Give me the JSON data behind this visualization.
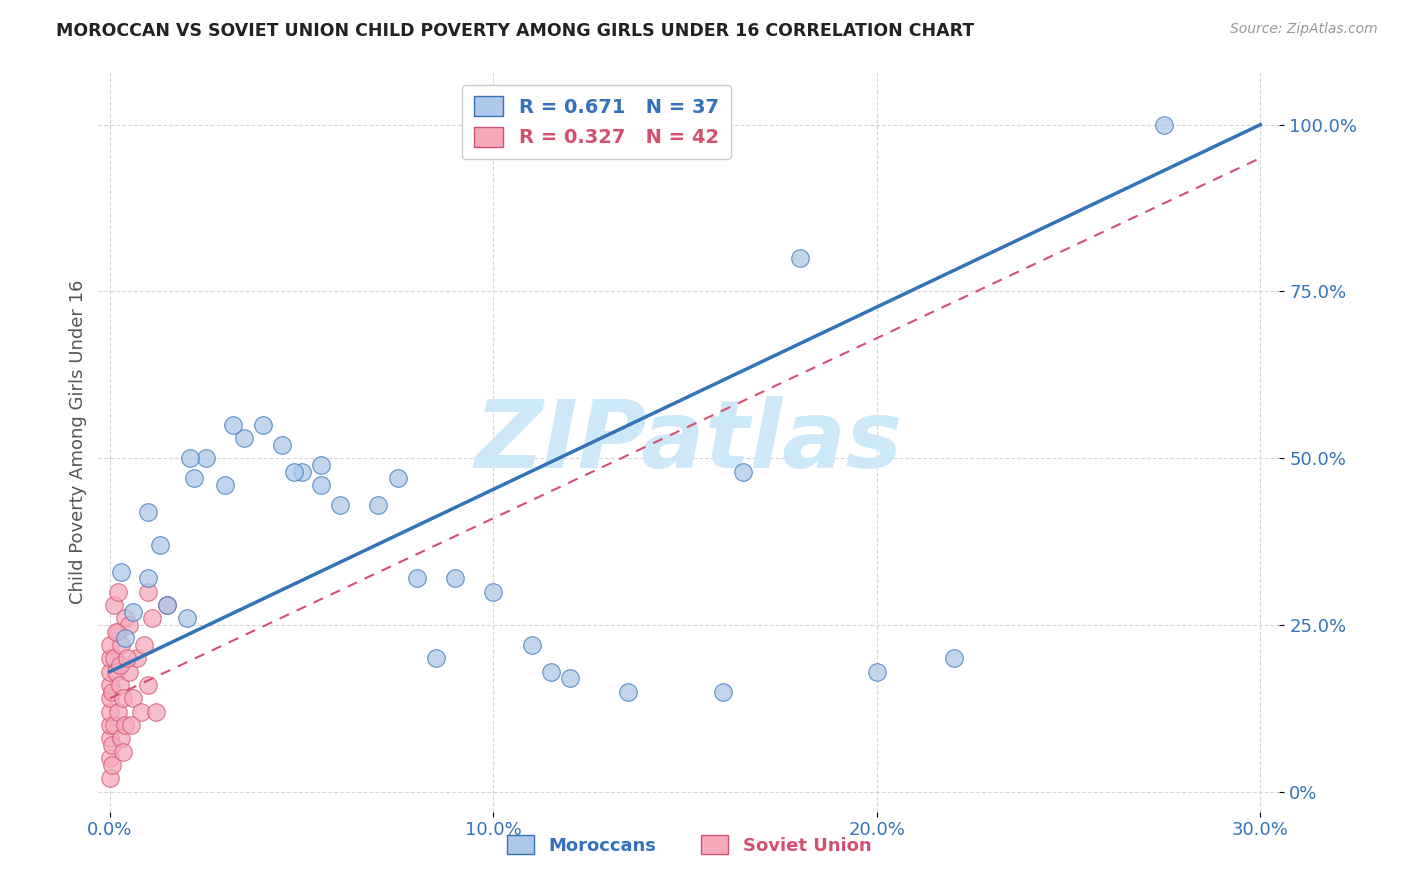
{
  "title": "MOROCCAN VS SOVIET UNION CHILD POVERTY AMONG GIRLS UNDER 16 CORRELATION CHART",
  "source_text": "Source: ZipAtlas.com",
  "ylabel": "Child Poverty Among Girls Under 16",
  "xlabel_ticks": [
    "0.0%",
    "10.0%",
    "20.0%",
    "30.0%"
  ],
  "xlabel_tick_vals": [
    0.0,
    10.0,
    20.0,
    30.0
  ],
  "ylabel_ticks": [
    "100.0%",
    "75.0%",
    "50.0%",
    "25.0%",
    "0%"
  ],
  "ylabel_tick_vals": [
    100.0,
    75.0,
    50.0,
    25.0,
    0.0
  ],
  "xlim": [
    -0.3,
    30.5
  ],
  "ylim": [
    -3.0,
    108.0
  ],
  "moroccan_R": 0.671,
  "moroccan_N": 37,
  "soviet_R": 0.327,
  "soviet_N": 42,
  "moroccan_color": "#adc8e8",
  "moroccan_line_color": "#3473ba",
  "soviet_color": "#f5aabc",
  "soviet_line_color": "#d45070",
  "watermark_text": "ZIPatlas",
  "watermark_color": "#cde8f8",
  "background_color": "#ffffff",
  "moroccan_line_x0": 0.0,
  "moroccan_line_y0": 18.0,
  "moroccan_line_x1": 30.0,
  "moroccan_line_y1": 100.0,
  "soviet_line_x0": 0.0,
  "soviet_line_y0": 14.0,
  "soviet_line_x1": 30.0,
  "soviet_line_y1": 95.0,
  "moroccan_x": [
    0.4,
    0.6,
    1.0,
    1.3,
    1.5,
    2.0,
    2.2,
    2.5,
    3.0,
    3.5,
    4.0,
    4.5,
    5.0,
    5.5,
    6.0,
    7.0,
    7.5,
    8.0,
    9.0,
    10.0,
    11.0,
    11.5,
    12.0,
    13.5,
    16.0,
    16.5,
    18.0,
    20.0,
    22.0,
    3.2,
    2.1,
    1.0,
    0.3,
    5.5,
    8.5,
    27.5,
    4.8
  ],
  "moroccan_y": [
    23.0,
    27.0,
    32.0,
    37.0,
    28.0,
    26.0,
    47.0,
    50.0,
    46.0,
    53.0,
    55.0,
    52.0,
    48.0,
    49.0,
    43.0,
    43.0,
    47.0,
    32.0,
    32.0,
    30.0,
    22.0,
    18.0,
    17.0,
    15.0,
    15.0,
    48.0,
    80.0,
    18.0,
    20.0,
    55.0,
    50.0,
    42.0,
    33.0,
    46.0,
    20.0,
    100.0,
    48.0
  ],
  "soviet_x": [
    0.0,
    0.0,
    0.0,
    0.0,
    0.0,
    0.0,
    0.0,
    0.0,
    0.0,
    0.0,
    0.05,
    0.05,
    0.1,
    0.1,
    0.1,
    0.15,
    0.2,
    0.2,
    0.2,
    0.25,
    0.3,
    0.3,
    0.35,
    0.4,
    0.4,
    0.5,
    0.5,
    0.6,
    0.7,
    0.8,
    0.9,
    1.0,
    1.1,
    1.2,
    1.5,
    0.05,
    0.15,
    0.25,
    0.35,
    0.45,
    0.55,
    1.0
  ],
  "soviet_y": [
    2.0,
    5.0,
    8.0,
    10.0,
    12.0,
    14.0,
    16.0,
    18.0,
    20.0,
    22.0,
    7.0,
    15.0,
    10.0,
    20.0,
    28.0,
    18.0,
    12.0,
    24.0,
    30.0,
    16.0,
    8.0,
    22.0,
    14.0,
    10.0,
    26.0,
    18.0,
    25.0,
    14.0,
    20.0,
    12.0,
    22.0,
    16.0,
    26.0,
    12.0,
    28.0,
    4.0,
    24.0,
    19.0,
    6.0,
    20.0,
    10.0,
    30.0
  ]
}
